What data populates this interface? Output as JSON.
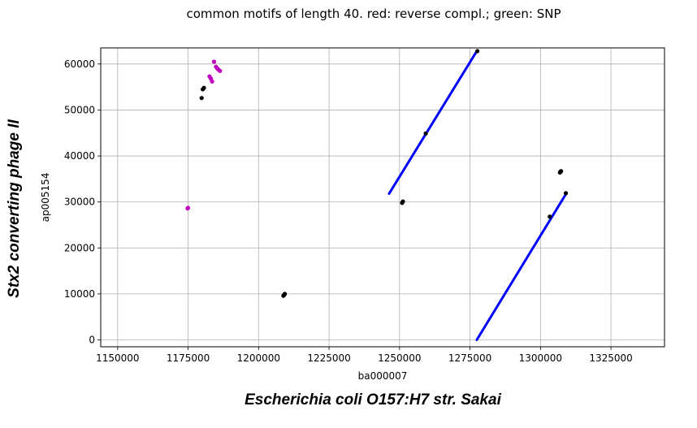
{
  "chart_data": {
    "type": "scatter",
    "title": "common motifs of length 40. red: reverse compl.; green: SNP",
    "xlabel": "ba000007",
    "ylabel": "ap005154",
    "outer_xlabel": "Escherichia coli O157:H7 str. Sakai",
    "outer_ylabel": "Stx2 converting phage II",
    "xlim": [
      1144000,
      1344000
    ],
    "ylim": [
      -1500,
      63500
    ],
    "xticks": [
      1150000,
      1175000,
      1200000,
      1225000,
      1250000,
      1275000,
      1300000,
      1325000
    ],
    "yticks": [
      0,
      10000,
      20000,
      30000,
      40000,
      50000,
      60000
    ],
    "grid": true,
    "colors": {
      "forward": "#0000ff",
      "match": "#000000",
      "reverse": "#bf00bf"
    },
    "lines": [
      {
        "x": [
          1246300,
          1277300
        ],
        "y": [
          31800,
          62700
        ]
      },
      {
        "x": [
          1277400,
          1309100
        ],
        "y": [
          0,
          31800
        ]
      }
    ],
    "points_black": [
      [
        1179800,
        52600
      ],
      [
        1180200,
        54500
      ],
      [
        1180600,
        54800
      ],
      [
        1208800,
        9600
      ],
      [
        1209100,
        9800
      ],
      [
        1209300,
        10000
      ],
      [
        1250900,
        29800
      ],
      [
        1251200,
        30100
      ],
      [
        1259300,
        44900
      ],
      [
        1277600,
        62800
      ],
      [
        1303300,
        26800
      ],
      [
        1306900,
        36400
      ],
      [
        1307100,
        36600
      ],
      [
        1307300,
        36700
      ],
      [
        1309000,
        31900
      ]
    ],
    "points_magenta": [
      [
        1174800,
        28600
      ],
      [
        1175000,
        28700
      ],
      [
        1182600,
        57300
      ],
      [
        1183100,
        56800
      ],
      [
        1183500,
        56200
      ],
      [
        1184200,
        60500
      ],
      [
        1184900,
        59400
      ],
      [
        1185400,
        59000
      ],
      [
        1185900,
        58700
      ],
      [
        1186300,
        58500
      ]
    ]
  }
}
